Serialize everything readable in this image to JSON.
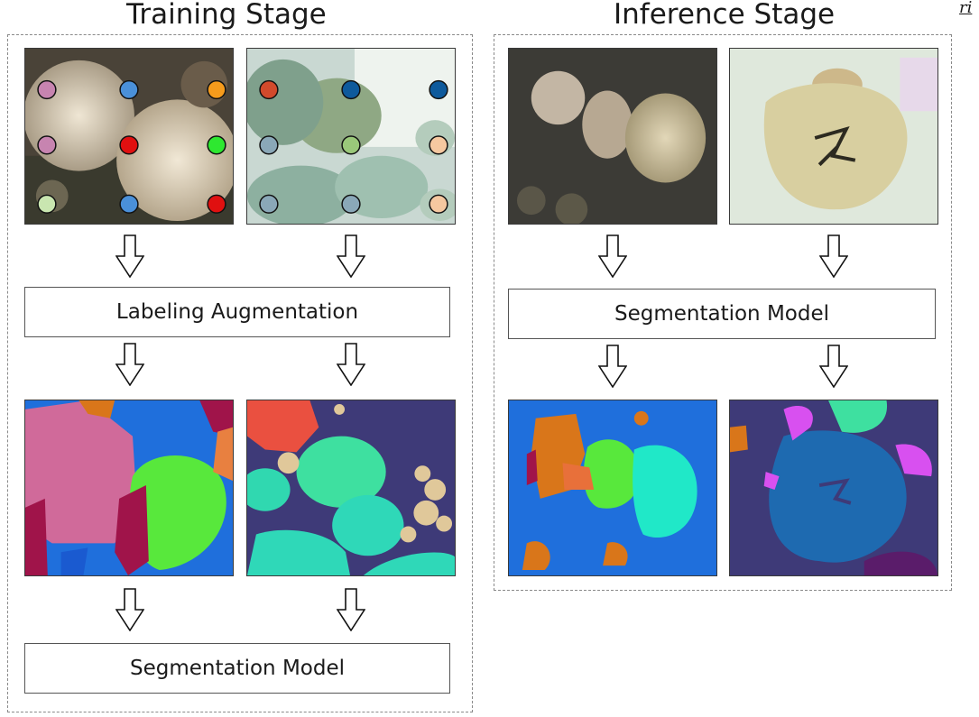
{
  "training": {
    "title": "Training Stage",
    "step1": "Labeling Augmentation",
    "step2": "Segmentation Model"
  },
  "inference": {
    "title": "Inference Stage",
    "step1": "Segmentation Model"
  },
  "edge_text": "ri",
  "colors": {
    "frame": "#8a8a8a",
    "mask_blue": "#1f6fdc",
    "mask_pink": "#d06a9a",
    "mask_green": "#58e83c",
    "mask_crimson": "#a0144a",
    "mask_orange": "#d9761a",
    "mask_indigo": "#3e3a78",
    "mask_mint": "#3ee0a0",
    "mask_teal": "#2fd8b8",
    "mask_tan": "#e0c89a",
    "mask_red": "#ea5040",
    "mask_cyan": "#20e8c8",
    "mask_magenta": "#d850f0",
    "mask_navy_blue": "#1e6ab0"
  },
  "point_labels": {
    "image1": [
      "#c784b0",
      "#4a90d9",
      "#f59b1c",
      "#c784b0",
      "#e01010",
      "#2ee830",
      "#c9e6b0",
      "#4a90d9",
      "#e01010"
    ],
    "image2": [
      "#d24a2c",
      "#0e5a9c",
      "#0e5a9c",
      "#8aa8b8",
      "#9ac87a",
      "#f5c8a0",
      "#8aa8b8",
      "#8aa8b8",
      "#f5c8a0"
    ]
  }
}
